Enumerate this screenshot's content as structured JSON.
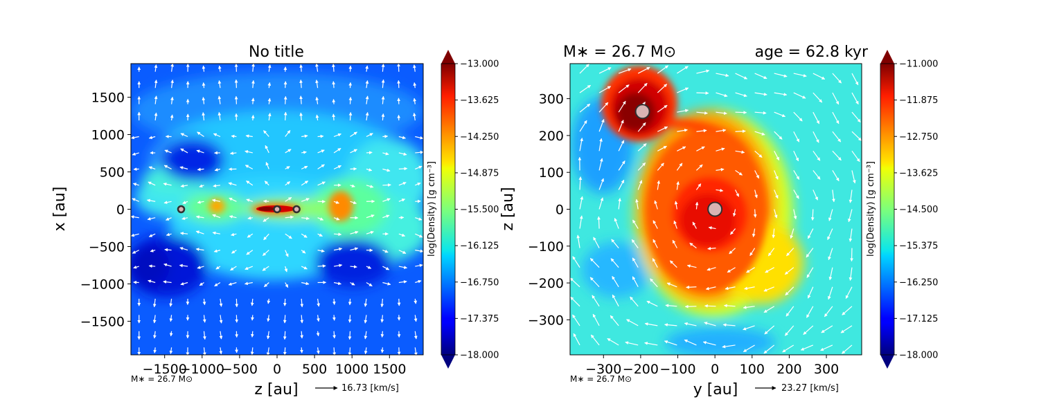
{
  "figure": {
    "left_title": "No title",
    "right_title_mass": "M∗ = 26.7 M⊙",
    "right_title_age": "age = 62.8 kyr"
  },
  "chart_data": [
    {
      "type": "heatmap",
      "title": "No title",
      "xlabel": "z [au]",
      "ylabel": "x [au]",
      "xlim": [
        -1950,
        1950
      ],
      "ylim": [
        -1950,
        1950
      ],
      "xticks": [
        -1500,
        -1000,
        -500,
        0,
        500,
        1000,
        1500
      ],
      "xtick_labels": [
        "−1500",
        "−1000",
        "−500",
        "0",
        "500",
        "1000",
        "1500"
      ],
      "yticks": [
        -1500,
        -1000,
        -500,
        0,
        500,
        1000,
        1500
      ],
      "ytick_labels": [
        "−1500",
        "−1000",
        "−500",
        "0",
        "500",
        "1000",
        "1500"
      ],
      "colormap": "jet",
      "colorbar": {
        "label": "log(Density) [g cm⁻³]",
        "range": [
          -18.0,
          -13.0
        ],
        "ticks": [
          -13.0,
          -13.625,
          -14.25,
          -14.875,
          -15.5,
          -16.125,
          -16.75,
          -17.375,
          -18.0
        ],
        "tick_labels": [
          "−13.000",
          "−13.625",
          "−14.250",
          "−14.875",
          "−15.500",
          "−16.125",
          "−16.750",
          "−17.375",
          "−18.000"
        ]
      },
      "sinks": [
        {
          "x": -1280,
          "y": 0
        },
        {
          "x": 0,
          "y": 0
        },
        {
          "x": 260,
          "y": 0
        }
      ],
      "mass_note": "M∗ = 26.7 M⊙",
      "quiver_key": "16.73 [km/s]"
    },
    {
      "type": "heatmap",
      "title": "",
      "xlabel": "y [au]",
      "ylabel": "z [au]",
      "xlim": [
        -390,
        395
      ],
      "ylim": [
        -395,
        395
      ],
      "xticks": [
        -300,
        -200,
        -100,
        0,
        100,
        200,
        300
      ],
      "xtick_labels": [
        "−300",
        "−200",
        "−100",
        "0",
        "100",
        "200",
        "300"
      ],
      "yticks": [
        -300,
        -200,
        -100,
        0,
        100,
        200,
        300
      ],
      "ytick_labels": [
        "−300",
        "−200",
        "−100",
        "0",
        "100",
        "200",
        "300"
      ],
      "colormap": "jet",
      "colorbar": {
        "label": "log(Density) [g cm⁻³]",
        "range": [
          -18.0,
          -11.0
        ],
        "ticks": [
          -11.0,
          -11.875,
          -12.75,
          -13.625,
          -14.5,
          -15.375,
          -16.25,
          -17.125,
          -18.0
        ],
        "tick_labels": [
          "−11.000",
          "−11.875",
          "−12.750",
          "−13.625",
          "−14.500",
          "−15.375",
          "−16.250",
          "−17.125",
          "−18.000"
        ]
      },
      "sinks": [
        {
          "x": -195,
          "y": 265
        },
        {
          "x": 0,
          "y": 0
        }
      ],
      "mass_note": "M∗ = 26.7 M⊙",
      "quiver_key": "23.27 [km/s]"
    }
  ]
}
